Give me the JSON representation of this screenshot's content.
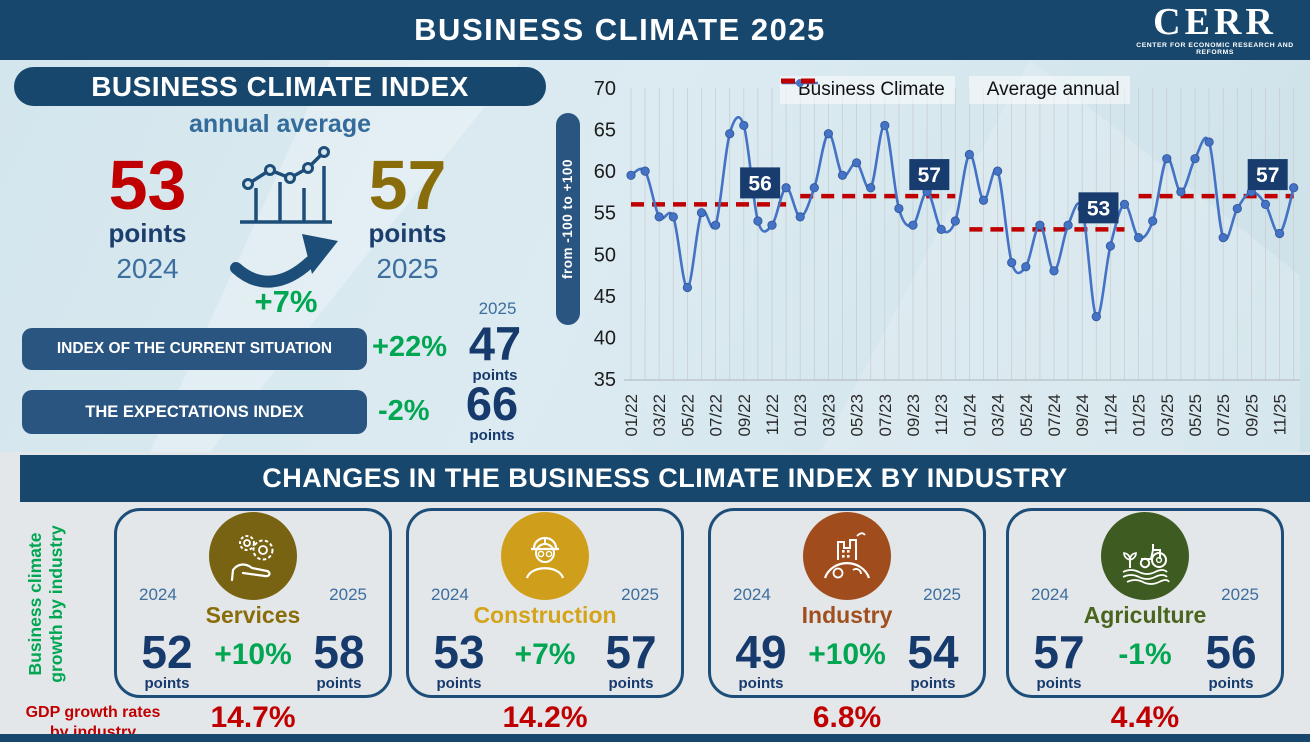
{
  "header": {
    "title": "BUSINESS CLIMATE 2025",
    "logo_text": "CERR",
    "logo_subtitle": "CENTER FOR ECONOMIC RESEARCH AND REFORMS"
  },
  "index_panel": {
    "title": "BUSINESS CLIMATE INDEX",
    "subtitle": "annual average",
    "prev": {
      "value": "53",
      "unit": "points",
      "year": "2024"
    },
    "next": {
      "value": "57",
      "unit": "points",
      "year": "2025"
    },
    "change": "+7%",
    "sub_year": "2025",
    "rows": [
      {
        "label": "INDEX OF THE CURRENT SITUATION",
        "change": "+22%",
        "value": "47",
        "unit": "points"
      },
      {
        "label": "THE EXPECTATIONS INDEX",
        "change": "-2%",
        "value": "66",
        "unit": "points"
      }
    ]
  },
  "chart_data": {
    "type": "line",
    "legend": [
      "Business Climate",
      "Average annual"
    ],
    "ylabel": "from -100 to +100",
    "ylim": [
      35,
      70
    ],
    "yticks": [
      70,
      65,
      60,
      55,
      50,
      45,
      40,
      35
    ],
    "tick_every": 2,
    "grid": "vertical",
    "legend_position": "top",
    "x": [
      "01/22",
      "02/22",
      "03/22",
      "04/22",
      "05/22",
      "06/22",
      "07/22",
      "08/22",
      "09/22",
      "10/22",
      "11/22",
      "12/22",
      "01/23",
      "02/23",
      "03/23",
      "04/23",
      "05/23",
      "06/23",
      "07/23",
      "08/23",
      "09/23",
      "10/23",
      "11/23",
      "12/23",
      "01/24",
      "02/24",
      "03/24",
      "04/24",
      "05/24",
      "06/24",
      "07/24",
      "08/24",
      "09/24",
      "10/24",
      "11/24",
      "12/24",
      "01/25",
      "02/25",
      "03/25",
      "04/25",
      "05/25",
      "06/25",
      "07/25",
      "08/25",
      "09/25",
      "10/25",
      "11/25",
      "12/25"
    ],
    "series": [
      {
        "name": "Business Climate",
        "color": "#4472c4",
        "values": [
          59.5,
          60,
          54.5,
          54.5,
          46,
          55,
          53.5,
          64.5,
          65.5,
          54,
          53.5,
          58,
          54.5,
          58,
          64.5,
          59.5,
          61,
          58,
          65.5,
          55.5,
          53.5,
          57.5,
          53,
          54,
          62,
          56.5,
          60,
          49,
          48.5,
          53.5,
          48,
          53.5,
          55.5,
          42.5,
          51,
          56,
          52,
          54,
          61.5,
          57.5,
          61.5,
          63.5,
          52,
          55.5,
          57.5,
          56,
          52.5,
          58
        ]
      }
    ],
    "averages": [
      {
        "year": "2022",
        "label": "56",
        "value": 56,
        "start": 0,
        "end": 11
      },
      {
        "year": "2023",
        "label": "57",
        "value": 57,
        "start": 12,
        "end": 23
      },
      {
        "year": "2024",
        "label": "53",
        "value": 53,
        "start": 24,
        "end": 35
      },
      {
        "year": "2025",
        "label": "57",
        "value": 57,
        "start": 36,
        "end": 47
      }
    ],
    "average_color": "#c00000"
  },
  "industry": {
    "banner": "CHANGES IN THE BUSINESS CLIMATE INDEX BY INDUSTRY",
    "side_label_line1": "Business climate",
    "side_label_line2": "growth by industry",
    "gdp_label_line1": "GDP growth rates",
    "gdp_label_line2": "by industry",
    "year_2024": "2024",
    "year_2025": "2025",
    "points": "points",
    "cards": [
      {
        "name": "Services",
        "icon": "gears-hand-icon",
        "title_color": "#8a6d0b",
        "circle_color": "#786312",
        "v2024": "52",
        "change": "+10%",
        "v2025": "58",
        "gdp": "14.7%"
      },
      {
        "name": "Construction",
        "icon": "construction-worker-icon",
        "title_color": "#d4a41a",
        "circle_color": "#cf9e1b",
        "v2024": "53",
        "change": "+7%",
        "v2025": "57",
        "gdp": "14.2%"
      },
      {
        "name": "Industry",
        "icon": "factory-globe-icon",
        "title_color": "#a0501e",
        "circle_color": "#a04c1c",
        "v2024": "49",
        "change": "+10%",
        "v2025": "54",
        "gdp": "6.8%"
      },
      {
        "name": "Agriculture",
        "icon": "tractor-field-icon",
        "title_color": "#4a661e",
        "circle_color": "#3e5c22",
        "v2024": "57",
        "change": "-1%",
        "v2025": "56",
        "gdp": "4.4%"
      }
    ]
  }
}
